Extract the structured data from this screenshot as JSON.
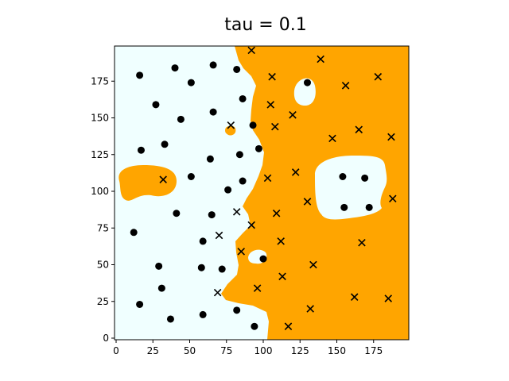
{
  "chart_data": {
    "type": "scatter",
    "title": "tau = 0.1",
    "xlabel": "",
    "ylabel": "",
    "xlim": [
      0,
      200
    ],
    "ylim": [
      0,
      200
    ],
    "xticks": [
      0,
      25,
      50,
      75,
      100,
      125,
      150,
      175
    ],
    "yticks": [
      0,
      25,
      50,
      75,
      100,
      125,
      150,
      175
    ],
    "grid": false,
    "colors": {
      "region_a": "#f0ffff",
      "region_b": "#ffa500",
      "markers": "#000000"
    },
    "series": [
      {
        "marker": "circle",
        "points": [
          [
            16,
            179
          ],
          [
            40,
            184
          ],
          [
            51,
            174
          ],
          [
            66,
            186
          ],
          [
            82,
            183
          ],
          [
            86,
            163
          ],
          [
            27,
            159
          ],
          [
            44,
            149
          ],
          [
            66,
            154
          ],
          [
            93,
            145
          ],
          [
            17,
            128
          ],
          [
            33,
            132
          ],
          [
            97,
            129
          ],
          [
            64,
            122
          ],
          [
            84,
            125
          ],
          [
            51,
            110
          ],
          [
            76,
            101
          ],
          [
            86,
            107
          ],
          [
            41,
            85
          ],
          [
            65,
            84
          ],
          [
            12,
            72
          ],
          [
            59,
            66
          ],
          [
            29,
            49
          ],
          [
            58,
            48
          ],
          [
            72,
            47
          ],
          [
            31,
            34
          ],
          [
            37,
            13
          ],
          [
            16,
            23
          ],
          [
            59,
            16
          ],
          [
            82,
            19
          ],
          [
            94,
            8
          ],
          [
            100,
            54
          ],
          [
            130,
            174
          ],
          [
            154,
            110
          ],
          [
            169,
            109
          ],
          [
            155,
            89
          ],
          [
            172,
            89
          ]
        ]
      },
      {
        "marker": "x",
        "points": [
          [
            92,
            196
          ],
          [
            139,
            190
          ],
          [
            106,
            178
          ],
          [
            156,
            172
          ],
          [
            178,
            178
          ],
          [
            105,
            159
          ],
          [
            120,
            152
          ],
          [
            108,
            144
          ],
          [
            78,
            145
          ],
          [
            147,
            136
          ],
          [
            165,
            142
          ],
          [
            187,
            137
          ],
          [
            32,
            108
          ],
          [
            103,
            109
          ],
          [
            122,
            113
          ],
          [
            188,
            95
          ],
          [
            130,
            93
          ],
          [
            82,
            86
          ],
          [
            109,
            85
          ],
          [
            70,
            70
          ],
          [
            92,
            77
          ],
          [
            112,
            66
          ],
          [
            167,
            65
          ],
          [
            85,
            59
          ],
          [
            134,
            50
          ],
          [
            113,
            42
          ],
          [
            96,
            34
          ],
          [
            69,
            31
          ],
          [
            162,
            28
          ],
          [
            185,
            27
          ],
          [
            132,
            20
          ],
          [
            117,
            8
          ]
        ]
      }
    ]
  }
}
